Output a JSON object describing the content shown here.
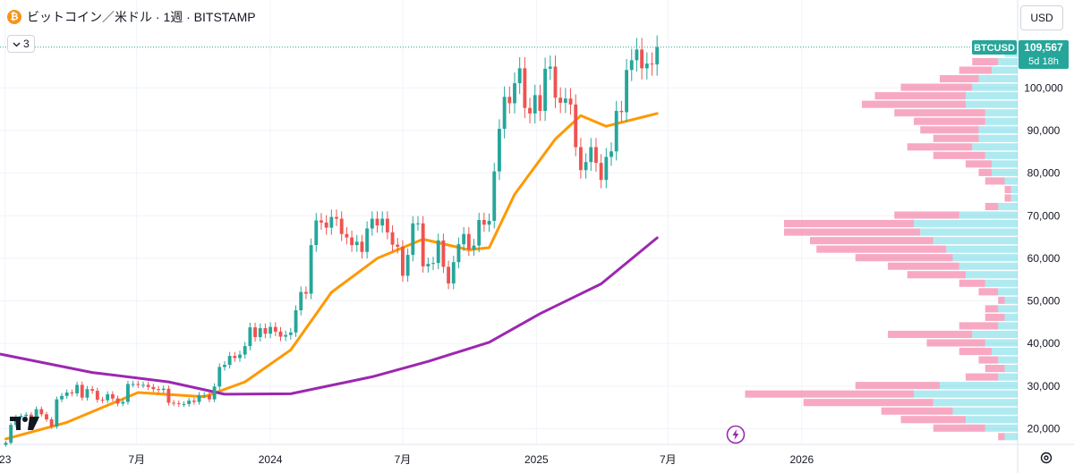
{
  "header": {
    "coin_icon_glyph": "₿",
    "title": "ビットコイン／米ドル · 1週 · BITSTAMP",
    "indicator_count": "3",
    "currency": "USD"
  },
  "chart_data": {
    "type": "candlestick",
    "symbol": "BTCUSD",
    "last_price": "109,567",
    "countdown": "5d 18h",
    "colors": {
      "up": "#26a69a",
      "down": "#ef5350",
      "ma_short": "#ff9800",
      "ma_long": "#9c27b0",
      "profile_up": "#4dd0e1",
      "profile_down": "#f06292",
      "price_tag": "#26a69a"
    },
    "y_axis": {
      "ticks": [
        100000,
        90000,
        80000,
        70000,
        60000,
        50000,
        40000,
        30000,
        20000
      ],
      "tick_labels": [
        "100,000",
        "90,000",
        "80,000",
        "70,000",
        "60,000",
        "50,000",
        "40,000",
        "30,000",
        "20,000"
      ],
      "range": [
        17000,
        113000
      ]
    },
    "x_axis": {
      "tick_labels": [
        "23",
        "7月",
        "2024",
        "7月",
        "2025",
        "7月",
        "2026"
      ],
      "tick_dates": [
        "2023-01-01",
        "2023-07-01",
        "2024-01-01",
        "2024-07-01",
        "2025-01-01",
        "2025-07-01",
        "2026-01-01"
      ],
      "range": [
        "2022-12-25",
        "2026-10-25"
      ]
    },
    "series_close": [
      [
        "2023-01-02",
        16700
      ],
      [
        "2023-01-09",
        20900
      ],
      [
        "2023-01-16",
        22700
      ],
      [
        "2023-01-23",
        23000
      ],
      [
        "2023-01-30",
        23300
      ],
      [
        "2023-02-06",
        21800
      ],
      [
        "2023-02-13",
        24600
      ],
      [
        "2023-02-20",
        23400
      ],
      [
        "2023-02-27",
        22200
      ],
      [
        "2023-03-06",
        20500
      ],
      [
        "2023-03-13",
        26900
      ],
      [
        "2023-03-20",
        27700
      ],
      [
        "2023-03-27",
        28500
      ],
      [
        "2023-04-03",
        28300
      ],
      [
        "2023-04-10",
        30300
      ],
      [
        "2023-04-17",
        27300
      ],
      [
        "2023-04-24",
        29300
      ],
      [
        "2023-05-01",
        28900
      ],
      [
        "2023-05-08",
        26800
      ],
      [
        "2023-05-15",
        26700
      ],
      [
        "2023-05-22",
        28100
      ],
      [
        "2023-05-29",
        27100
      ],
      [
        "2023-06-05",
        25900
      ],
      [
        "2023-06-12",
        26300
      ],
      [
        "2023-06-19",
        30500
      ],
      [
        "2023-06-26",
        30500
      ],
      [
        "2023-07-03",
        30300
      ],
      [
        "2023-07-10",
        30300
      ],
      [
        "2023-07-17",
        29800
      ],
      [
        "2023-07-24",
        29300
      ],
      [
        "2023-07-31",
        29100
      ],
      [
        "2023-08-07",
        29400
      ],
      [
        "2023-08-14",
        26100
      ],
      [
        "2023-08-21",
        26000
      ],
      [
        "2023-08-28",
        25800
      ],
      [
        "2023-09-04",
        25800
      ],
      [
        "2023-09-11",
        26600
      ],
      [
        "2023-09-18",
        26300
      ],
      [
        "2023-09-25",
        27900
      ],
      [
        "2023-10-02",
        27900
      ],
      [
        "2023-10-09",
        26900
      ],
      [
        "2023-10-16",
        29900
      ],
      [
        "2023-10-23",
        34500
      ],
      [
        "2023-10-30",
        35000
      ],
      [
        "2023-11-06",
        37100
      ],
      [
        "2023-11-13",
        36600
      ],
      [
        "2023-11-20",
        37400
      ],
      [
        "2023-11-27",
        39400
      ],
      [
        "2023-12-04",
        43800
      ],
      [
        "2023-12-11",
        41500
      ],
      [
        "2023-12-18",
        43600
      ],
      [
        "2023-12-25",
        42300
      ],
      [
        "2024-01-01",
        43900
      ],
      [
        "2024-01-08",
        42800
      ],
      [
        "2024-01-15",
        41600
      ],
      [
        "2024-01-22",
        42000
      ],
      [
        "2024-01-29",
        42600
      ],
      [
        "2024-02-05",
        47800
      ],
      [
        "2024-02-12",
        52100
      ],
      [
        "2024-02-19",
        51700
      ],
      [
        "2024-02-26",
        63100
      ],
      [
        "2024-03-04",
        68900
      ],
      [
        "2024-03-11",
        68400
      ],
      [
        "2024-03-18",
        67200
      ],
      [
        "2024-03-25",
        69700
      ],
      [
        "2024-04-01",
        69300
      ],
      [
        "2024-04-08",
        65700
      ],
      [
        "2024-04-15",
        64900
      ],
      [
        "2024-04-22",
        63100
      ],
      [
        "2024-04-29",
        63900
      ],
      [
        "2024-05-06",
        61500
      ],
      [
        "2024-05-13",
        67000
      ],
      [
        "2024-05-20",
        69300
      ],
      [
        "2024-05-27",
        67700
      ],
      [
        "2024-06-03",
        69300
      ],
      [
        "2024-06-10",
        66100
      ],
      [
        "2024-06-17",
        63200
      ],
      [
        "2024-06-24",
        62700
      ],
      [
        "2024-07-01",
        55900
      ],
      [
        "2024-07-08",
        60800
      ],
      [
        "2024-07-15",
        68200
      ],
      [
        "2024-07-22",
        68200
      ],
      [
        "2024-07-29",
        58100
      ],
      [
        "2024-08-05",
        58700
      ],
      [
        "2024-08-12",
        58900
      ],
      [
        "2024-08-19",
        64200
      ],
      [
        "2024-08-26",
        58000
      ],
      [
        "2024-09-02",
        54100
      ],
      [
        "2024-09-09",
        59100
      ],
      [
        "2024-09-16",
        63300
      ],
      [
        "2024-09-23",
        65700
      ],
      [
        "2024-09-30",
        62100
      ],
      [
        "2024-10-07",
        63000
      ],
      [
        "2024-10-14",
        69000
      ],
      [
        "2024-10-21",
        67900
      ],
      [
        "2024-10-28",
        68800
      ],
      [
        "2024-11-04",
        80400
      ],
      [
        "2024-11-11",
        90400
      ],
      [
        "2024-11-18",
        97900
      ],
      [
        "2024-11-25",
        96400
      ],
      [
        "2024-12-02",
        101100
      ],
      [
        "2024-12-09",
        104600
      ],
      [
        "2024-12-16",
        95300
      ],
      [
        "2024-12-23",
        94000
      ],
      [
        "2024-12-30",
        98300
      ],
      [
        "2025-01-06",
        94600
      ],
      [
        "2025-01-13",
        104500
      ],
      [
        "2025-01-20",
        105000
      ],
      [
        "2025-01-27",
        97700
      ],
      [
        "2025-02-03",
        96500
      ],
      [
        "2025-02-10",
        97500
      ],
      [
        "2025-02-17",
        96100
      ],
      [
        "2025-02-24",
        86100
      ],
      [
        "2025-03-03",
        80700
      ],
      [
        "2025-03-10",
        82600
      ],
      [
        "2025-03-17",
        86100
      ],
      [
        "2025-03-24",
        82400
      ],
      [
        "2025-03-31",
        78400
      ],
      [
        "2025-04-07",
        83800
      ],
      [
        "2025-04-14",
        85100
      ],
      [
        "2025-04-21",
        94600
      ],
      [
        "2025-04-28",
        94300
      ],
      [
        "2025-05-05",
        104200
      ],
      [
        "2025-05-12",
        106500
      ],
      [
        "2025-05-19",
        109000
      ],
      [
        "2025-05-26",
        104600
      ],
      [
        "2025-06-02",
        105700
      ],
      [
        "2025-06-09",
        105500
      ],
      [
        "2025-06-16",
        109567
      ]
    ],
    "series": [
      {
        "type": "moving_average",
        "color": "#ff9800",
        "points": [
          [
            "2023-01-02",
            17600
          ],
          [
            "2023-03-27",
            21500
          ],
          [
            "2023-07-03",
            28500
          ],
          [
            "2023-10-02",
            27500
          ],
          [
            "2023-11-27",
            31000
          ],
          [
            "2024-01-29",
            38500
          ],
          [
            "2024-03-25",
            52000
          ],
          [
            "2024-05-27",
            60000
          ],
          [
            "2024-07-29",
            64500
          ],
          [
            "2024-09-30",
            62000
          ],
          [
            "2024-10-28",
            62500
          ],
          [
            "2024-12-02",
            75000
          ],
          [
            "2025-01-27",
            88000
          ],
          [
            "2025-03-03",
            93500
          ],
          [
            "2025-04-07",
            91000
          ],
          [
            "2025-06-16",
            94000
          ]
        ]
      },
      {
        "type": "moving_average",
        "color": "#9c27b0",
        "points": [
          [
            "2022-12-26",
            37500
          ],
          [
            "2023-05-01",
            33200
          ],
          [
            "2023-08-14",
            31000
          ],
          [
            "2023-10-30",
            28100
          ],
          [
            "2024-01-29",
            28200
          ],
          [
            "2024-05-20",
            32200
          ],
          [
            "2024-08-05",
            35800
          ],
          [
            "2024-10-28",
            40300
          ],
          [
            "2025-01-06",
            47000
          ],
          [
            "2025-03-31",
            54000
          ],
          [
            "2025-06-16",
            64800
          ]
        ]
      }
    ],
    "volume_profile": [
      [
        108000,
        1.0,
        0.0
      ],
      [
        106000,
        1.5,
        2.0
      ],
      [
        104000,
        2.0,
        2.5
      ],
      [
        102000,
        3.0,
        3.0
      ],
      [
        100000,
        3.5,
        5.5
      ],
      [
        98000,
        4.0,
        7.0
      ],
      [
        96000,
        4.0,
        8.0
      ],
      [
        94000,
        2.5,
        7.0
      ],
      [
        92000,
        2.5,
        5.5
      ],
      [
        90000,
        3.0,
        4.5
      ],
      [
        88000,
        3.0,
        3.5
      ],
      [
        86000,
        3.5,
        5.0
      ],
      [
        84000,
        2.5,
        4.0
      ],
      [
        82000,
        2.0,
        2.0
      ],
      [
        80000,
        2.0,
        1.0
      ],
      [
        78000,
        1.0,
        1.5
      ],
      [
        76000,
        0.5,
        0.5
      ],
      [
        74000,
        0.5,
        0.5
      ],
      [
        72000,
        1.5,
        1.0
      ],
      [
        70000,
        4.5,
        5.0
      ],
      [
        68000,
        8.0,
        10.0
      ],
      [
        66000,
        7.5,
        10.5
      ],
      [
        64000,
        6.5,
        9.5
      ],
      [
        62000,
        5.5,
        10.0
      ],
      [
        60000,
        5.0,
        7.5
      ],
      [
        58000,
        4.5,
        5.5
      ],
      [
        56000,
        4.0,
        4.5
      ],
      [
        54000,
        2.5,
        2.0
      ],
      [
        52000,
        1.5,
        1.5
      ],
      [
        50000,
        1.0,
        0.5
      ],
      [
        48000,
        1.5,
        1.0
      ],
      [
        46000,
        1.0,
        1.5
      ],
      [
        44000,
        1.5,
        3.0
      ],
      [
        42000,
        3.5,
        6.5
      ],
      [
        40000,
        2.5,
        4.5
      ],
      [
        38000,
        2.0,
        2.5
      ],
      [
        36000,
        1.5,
        1.5
      ],
      [
        34000,
        1.0,
        1.5
      ],
      [
        32000,
        1.5,
        2.5
      ],
      [
        30000,
        6.0,
        6.5
      ],
      [
        28000,
        8.0,
        13.0
      ],
      [
        26000,
        6.5,
        10.0
      ],
      [
        24000,
        5.0,
        5.5
      ],
      [
        22000,
        4.0,
        5.0
      ],
      [
        20000,
        2.5,
        4.0
      ],
      [
        18000,
        1.0,
        0.5
      ]
    ]
  }
}
